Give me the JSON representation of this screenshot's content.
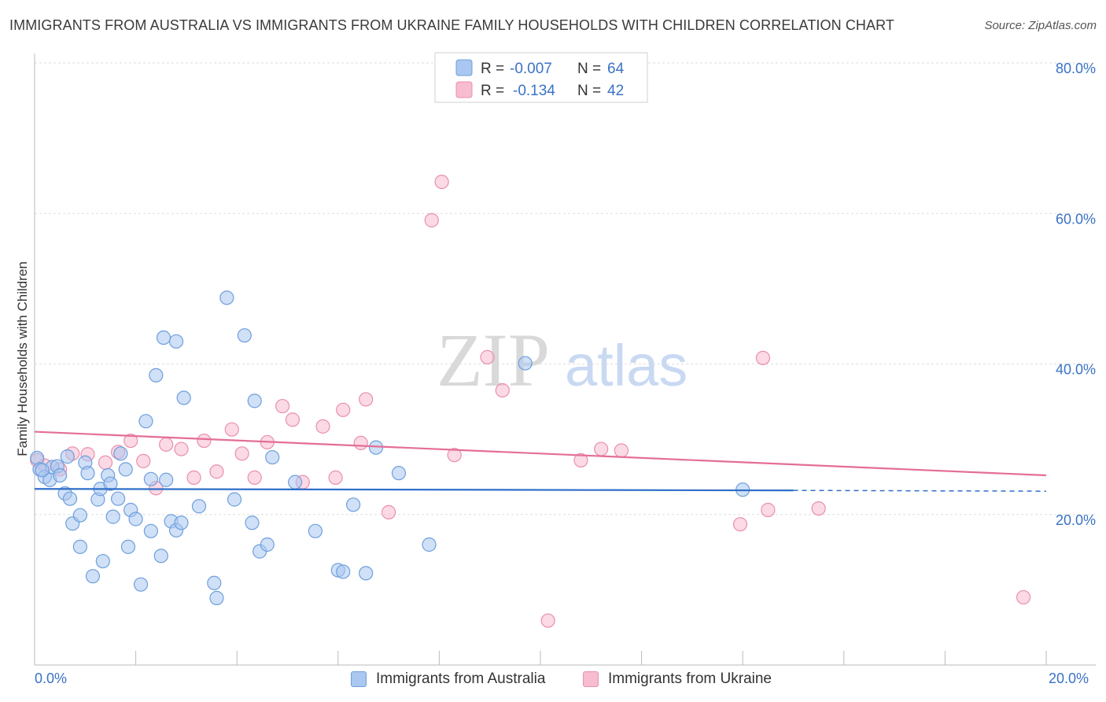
{
  "header": {
    "title": "IMMIGRANTS FROM AUSTRALIA VS IMMIGRANTS FROM UKRAINE FAMILY HOUSEHOLDS WITH CHILDREN CORRELATION CHART",
    "source": "Source: ZipAtlas.com"
  },
  "watermark": {
    "zip": "ZIP",
    "atlas": "atlas"
  },
  "colors": {
    "blue_fill": "#a9c7f0",
    "blue_stroke": "#6e9fdc",
    "blue_line": "#2f6fc9",
    "pink_fill": "#f7bcd0",
    "pink_stroke": "#e98fad",
    "pink_line": "#e46e96",
    "axis_text": "#3a72c4",
    "grid": "#dddddd"
  },
  "stats_legend": [
    {
      "r_label": "R =",
      "r_value": "-0.007",
      "n_label": "N =",
      "n_value": "64"
    },
    {
      "r_label": "R =",
      "r_value": "-0.134",
      "n_label": "N =",
      "n_value": "42"
    }
  ],
  "bottom_legend": {
    "australia": "Immigrants from Australia",
    "ukraine": "Immigrants from Ukraine"
  },
  "x_axis": {
    "min_label": "0.0%",
    "max_label": "20.0%"
  },
  "chart_data": {
    "type": "scatter",
    "title": "IMMIGRANTS FROM AUSTRALIA VS IMMIGRANTS FROM UKRAINE FAMILY HOUSEHOLDS WITH CHILDREN CORRELATION CHART",
    "xlabel": "",
    "ylabel": "Family Households with Children",
    "xlim": [
      0,
      20
    ],
    "ylim": [
      0,
      80
    ],
    "y_ticks": [
      20,
      40,
      60,
      80
    ],
    "y_tick_labels": [
      "20.0%",
      "40.0%",
      "60.0%",
      "80.0%"
    ],
    "grid": true,
    "series": [
      {
        "name": "Immigrants from Australia",
        "r": -0.007,
        "n": 64,
        "trend": {
          "x0": 0,
          "y0": 23.4,
          "x1": 15.0,
          "y1": 23.2,
          "dashed_to_x": 20.0,
          "dashed_y": 23.1
        },
        "points": [
          [
            0.05,
            27.5
          ],
          [
            0.1,
            26.0
          ],
          [
            0.2,
            25.0
          ],
          [
            0.3,
            24.6
          ],
          [
            0.35,
            26.3
          ],
          [
            0.45,
            26.4
          ],
          [
            0.6,
            22.8
          ],
          [
            0.7,
            22.1
          ],
          [
            0.75,
            18.8
          ],
          [
            0.9,
            19.9
          ],
          [
            0.65,
            27.7
          ],
          [
            1.0,
            26.9
          ],
          [
            1.05,
            25.5
          ],
          [
            0.9,
            15.7
          ],
          [
            1.15,
            11.8
          ],
          [
            1.25,
            22.0
          ],
          [
            1.3,
            23.4
          ],
          [
            1.35,
            13.8
          ],
          [
            1.45,
            25.2
          ],
          [
            1.5,
            24.1
          ],
          [
            1.55,
            19.7
          ],
          [
            1.65,
            22.1
          ],
          [
            1.7,
            28.1
          ],
          [
            1.8,
            26.0
          ],
          [
            1.85,
            15.7
          ],
          [
            1.9,
            20.6
          ],
          [
            2.0,
            19.4
          ],
          [
            2.1,
            10.7
          ],
          [
            2.2,
            32.4
          ],
          [
            2.3,
            24.7
          ],
          [
            2.3,
            17.8
          ],
          [
            2.4,
            38.5
          ],
          [
            2.5,
            14.5
          ],
          [
            2.55,
            43.5
          ],
          [
            2.6,
            24.6
          ],
          [
            2.7,
            19.1
          ],
          [
            2.8,
            17.9
          ],
          [
            2.8,
            43.0
          ],
          [
            2.9,
            18.9
          ],
          [
            2.95,
            35.5
          ],
          [
            3.25,
            21.1
          ],
          [
            3.55,
            10.9
          ],
          [
            3.6,
            8.9
          ],
          [
            3.8,
            48.8
          ],
          [
            3.95,
            22.0
          ],
          [
            4.15,
            43.8
          ],
          [
            4.3,
            18.9
          ],
          [
            4.35,
            35.1
          ],
          [
            4.45,
            15.1
          ],
          [
            4.6,
            16.0
          ],
          [
            4.7,
            27.6
          ],
          [
            5.15,
            24.3
          ],
          [
            5.55,
            17.8
          ],
          [
            6.0,
            12.6
          ],
          [
            6.1,
            12.4
          ],
          [
            6.3,
            21.3
          ],
          [
            6.55,
            12.2
          ],
          [
            6.75,
            28.9
          ],
          [
            7.2,
            25.5
          ],
          [
            7.8,
            16.0
          ],
          [
            9.7,
            40.1
          ],
          [
            14.0,
            23.3
          ],
          [
            0.15,
            25.9
          ],
          [
            0.5,
            25.2
          ]
        ]
      },
      {
        "name": "Immigrants from Ukraine",
        "r": -0.134,
        "n": 42,
        "trend": {
          "x0": 0,
          "y0": 31.0,
          "x1": 20.0,
          "y1": 25.2
        },
        "points": [
          [
            0.05,
            27.2
          ],
          [
            0.2,
            26.5
          ],
          [
            0.5,
            26.0
          ],
          [
            0.75,
            28.1
          ],
          [
            1.05,
            28.0
          ],
          [
            1.4,
            26.9
          ],
          [
            1.65,
            28.3
          ],
          [
            1.9,
            29.8
          ],
          [
            2.15,
            27.1
          ],
          [
            2.4,
            23.5
          ],
          [
            2.6,
            29.3
          ],
          [
            2.9,
            28.7
          ],
          [
            3.15,
            24.9
          ],
          [
            3.35,
            29.8
          ],
          [
            3.6,
            25.7
          ],
          [
            3.9,
            31.3
          ],
          [
            4.1,
            28.1
          ],
          [
            4.35,
            24.9
          ],
          [
            4.6,
            29.6
          ],
          [
            4.9,
            34.4
          ],
          [
            5.1,
            32.6
          ],
          [
            5.3,
            24.3
          ],
          [
            5.7,
            31.7
          ],
          [
            5.95,
            24.9
          ],
          [
            6.1,
            33.9
          ],
          [
            6.45,
            29.5
          ],
          [
            6.55,
            35.3
          ],
          [
            7.0,
            20.3
          ],
          [
            7.85,
            59.1
          ],
          [
            8.05,
            64.2
          ],
          [
            8.3,
            27.9
          ],
          [
            8.95,
            40.9
          ],
          [
            9.25,
            36.5
          ],
          [
            10.15,
            5.9
          ],
          [
            10.8,
            27.2
          ],
          [
            11.2,
            28.7
          ],
          [
            11.6,
            28.5
          ],
          [
            13.95,
            18.7
          ],
          [
            14.4,
            40.8
          ],
          [
            14.5,
            20.6
          ],
          [
            15.5,
            20.8
          ],
          [
            19.55,
            9.0
          ]
        ]
      }
    ]
  }
}
